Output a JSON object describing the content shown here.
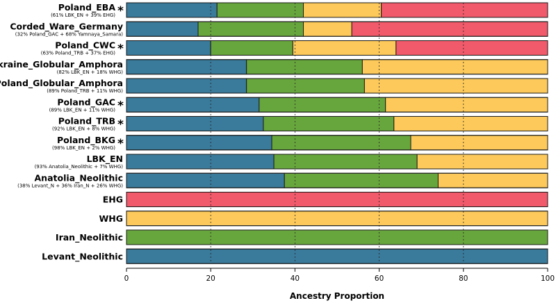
{
  "chart_data": {
    "type": "bar",
    "orientation": "horizontal",
    "stacked": true,
    "title": "",
    "xlabel": "Ancestry Proportion",
    "ylabel": "",
    "xlim": [
      0,
      100
    ],
    "xticks": [
      0,
      20,
      40,
      60,
      80,
      100
    ],
    "grid": "vertical dotted at 20, 40, 60, 80",
    "legend": "none",
    "colors": {
      "blue": "#3a7a9b",
      "green": "#67a63c",
      "yellow": "#fcc95a",
      "red": "#f05a6a"
    },
    "categories": [
      {
        "label": "Poland_EBA",
        "sub": "(61% LBK_EN + 39% EHG)",
        "star": true
      },
      {
        "label": "Corded_Ware_Germany",
        "sub": "(32% Poland_GAC + 68% Yamnaya_Samara)",
        "star": false
      },
      {
        "label": "Poland_CWC",
        "sub": "(63% Poland_TRB + 37% EHG)",
        "star": true
      },
      {
        "label": "Ukraine_Globular_Amphora",
        "sub": "(82% LBK_EN + 18% WHG)",
        "star": false
      },
      {
        "label": "Poland_Globular_Amphora",
        "sub": "(89% Poland_TRB + 11% WHG)",
        "star": false
      },
      {
        "label": "Poland_GAC",
        "sub": "(89% LBK_EN + 11% WHG)",
        "star": true
      },
      {
        "label": "Poland_TRB",
        "sub": "(92% LBK_EN + 8% WHG)",
        "star": true
      },
      {
        "label": "Poland_BKG",
        "sub": "(98% LBK_EN + 2% WHG)",
        "star": true
      },
      {
        "label": "LBK_EN",
        "sub": "(93% Anatolia_Neolithic + 7% WHG)",
        "star": false
      },
      {
        "label": "Anatolia_Neolithic",
        "sub": "(38% Levant_N + 36% Iran_N + 26% WHG)",
        "star": false
      },
      {
        "label": "EHG",
        "sub": "",
        "star": false
      },
      {
        "label": "WHG",
        "sub": "",
        "star": false
      },
      {
        "label": "Iran_Neolithic",
        "sub": "",
        "star": false
      },
      {
        "label": "Levant_Neolithic",
        "sub": "",
        "star": false
      }
    ],
    "series": [
      {
        "color": "blue",
        "values": [
          21.5,
          17,
          20,
          28.5,
          28.5,
          31.5,
          32.5,
          34.5,
          35,
          37.5,
          0,
          0,
          0,
          100
        ]
      },
      {
        "color": "green",
        "values": [
          20.5,
          25,
          19.5,
          27.5,
          28,
          30,
          31,
          33,
          34,
          36.5,
          0,
          0,
          100,
          0
        ]
      },
      {
        "color": "yellow",
        "values": [
          18.5,
          11.5,
          24.5,
          44,
          43.5,
          38.5,
          36.5,
          32.5,
          31,
          26,
          0,
          100,
          0,
          0
        ]
      },
      {
        "color": "red",
        "values": [
          39.5,
          46.5,
          36,
          0,
          0,
          0,
          0,
          0,
          0,
          0,
          100,
          0,
          0,
          0
        ]
      }
    ]
  }
}
